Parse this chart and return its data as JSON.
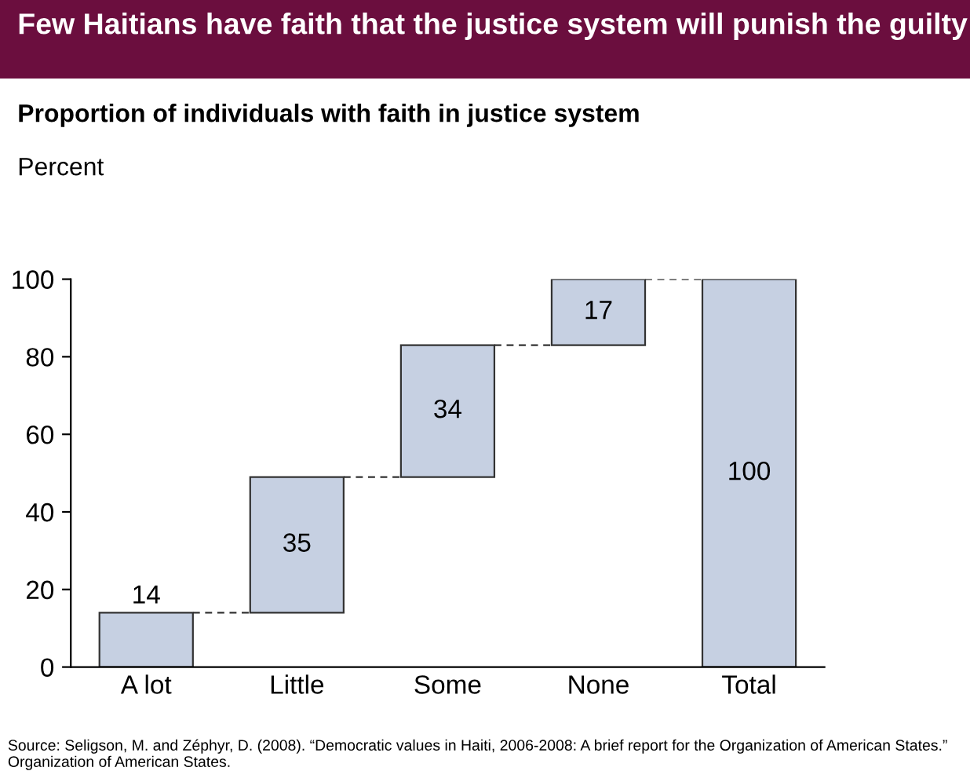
{
  "chart_data": {
    "type": "bar",
    "title": "Few Haitians have faith that the justice system will punish the guilty",
    "subtitle": "Proportion of individuals with faith in justice system",
    "ylabel": "Percent",
    "categories": [
      "A lot",
      "Little",
      "Some",
      "None",
      "Total"
    ],
    "values": [
      14,
      35,
      34,
      17,
      100
    ],
    "base": [
      0,
      14,
      49,
      83,
      0
    ],
    "color": "#c6d0e2",
    "ylim": [
      0,
      100
    ],
    "yticks": [
      0,
      20,
      40,
      60,
      80,
      100
    ],
    "grid": false,
    "data_labels": true,
    "annotations": [
      "Source: Seligson, M. and Zéphyr, D. (2008). “Democratic values in Haiti, 2006-2008: A brief report for the Organization of American States.” Organization of American States."
    ]
  }
}
